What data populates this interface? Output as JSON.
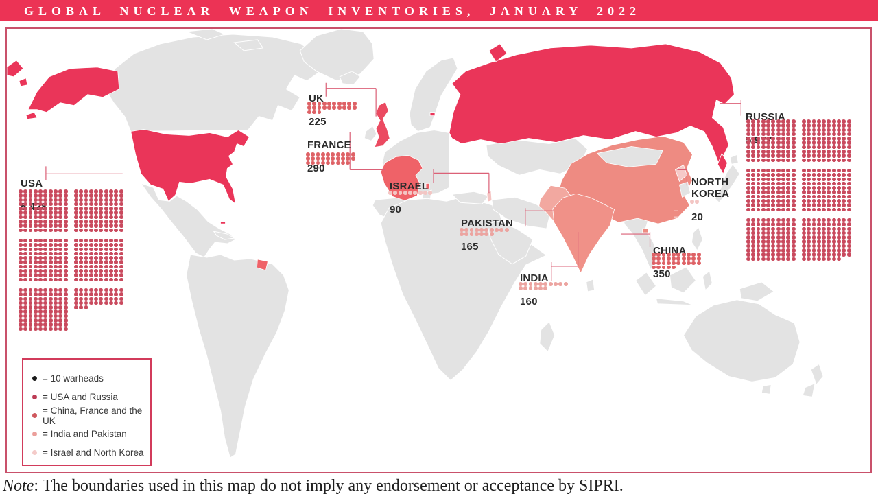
{
  "title": "GLOBAL NUCLEAR WEAPON INVENTORIES, JANUARY 2022",
  "note": {
    "label": "Note",
    "text": ": The boundaries used in this map do not imply any endorsement or acceptance by SIPRI."
  },
  "legend": {
    "items": [
      {
        "swatch": "#1A1A1A",
        "label": "= 10 warheads"
      },
      {
        "swatch": "#BC3C55",
        "label": "= USA and Russia"
      },
      {
        "swatch": "#CF585E",
        "label": "= China, France and the UK"
      },
      {
        "swatch": "#EB9F9B",
        "label": "= India and Pakistan"
      },
      {
        "swatch": "#F4CBC9",
        "label": "= Israel and North Korea"
      }
    ]
  },
  "countries": [
    {
      "name": "USA",
      "value_label": "5 428",
      "value": 5428,
      "dot_color": "#C94A5E"
    },
    {
      "name": "RUSSIA",
      "value_label": "5 977",
      "value": 5977,
      "dot_color": "#C94A5E"
    },
    {
      "name": "UK",
      "value_label": "225",
      "value": 225,
      "dot_color": "#DE6266"
    },
    {
      "name": "FRANCE",
      "value_label": "290",
      "value": 290,
      "dot_color": "#DE6266"
    },
    {
      "name": "ISRAEL",
      "value_label": "90",
      "value": 90,
      "dot_color": "#F3C6C4"
    },
    {
      "name": "PAKISTAN",
      "value_label": "165",
      "value": 165,
      "dot_color": "#ECA4A0"
    },
    {
      "name": "INDIA",
      "value_label": "160",
      "value": 160,
      "dot_color": "#ECA4A0"
    },
    {
      "name": "CHINA",
      "value_label": "350",
      "value": 350,
      "dot_color": "#DE6266"
    },
    {
      "name": "NORTH KOREA",
      "value_label": "20",
      "value": 20,
      "dot_color": "#F3C6C4"
    }
  ],
  "chart_data": {
    "type": "pictogram_map",
    "title": "Global nuclear weapon inventories, January 2022",
    "unit": "1 dot = 10 warheads",
    "categories": [
      "USA",
      "RUSSIA",
      "UK",
      "FRANCE",
      "ISRAEL",
      "PAKISTAN",
      "INDIA",
      "CHINA",
      "NORTH KOREA"
    ],
    "values": [
      5428,
      5977,
      225,
      290,
      90,
      165,
      160,
      350,
      20
    ],
    "color_groups": [
      {
        "group": "USA and Russia",
        "color": "#C94A5E",
        "members": [
          "USA",
          "RUSSIA"
        ]
      },
      {
        "group": "China, France and the UK",
        "color": "#DE6266",
        "members": [
          "CHINA",
          "FRANCE",
          "UK"
        ]
      },
      {
        "group": "India and Pakistan",
        "color": "#ECA4A0",
        "members": [
          "INDIA",
          "PAKISTAN"
        ]
      },
      {
        "group": "Israel and North Korea",
        "color": "#F3C6C4",
        "members": [
          "ISRAEL",
          "NORTH KOREA"
        ]
      }
    ],
    "source_note": "The boundaries used in this map do not imply any endorsement or acceptance by SIPRI."
  }
}
